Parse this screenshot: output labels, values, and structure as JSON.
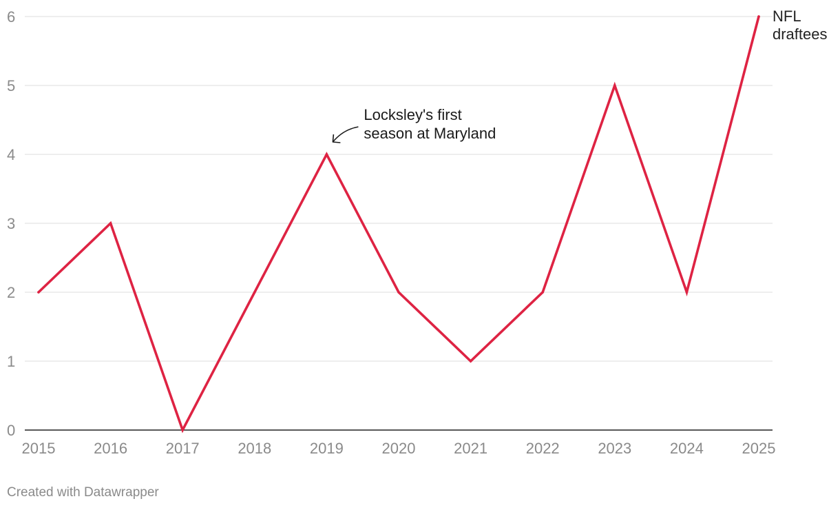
{
  "chart_data": {
    "type": "line",
    "categories": [
      "2015",
      "2016",
      "2017",
      "2018",
      "2019",
      "2020",
      "2021",
      "2022",
      "2023",
      "2024",
      "2025"
    ],
    "series": [
      {
        "name": "NFL draftees",
        "name_lines": [
          "NFL",
          "draftees"
        ],
        "values": [
          2,
          3,
          0,
          2,
          4,
          2,
          1,
          2,
          5,
          2,
          6
        ],
        "color": "#de2343"
      }
    ],
    "ylim": [
      0,
      6
    ],
    "yticks": [
      "0",
      "1",
      "2",
      "3",
      "4",
      "5",
      "6"
    ],
    "grid": true,
    "legend": "direct label at line end (right)",
    "annotations": [
      {
        "category": "2019",
        "value": 4,
        "lines": [
          "Locksley's first",
          "season at Maryland"
        ]
      }
    ],
    "title": "",
    "xlabel": "",
    "ylabel": ""
  },
  "colors": {
    "line": "#de2343",
    "grid": "#e3e3e3",
    "axis": "#222222",
    "tick_text": "#8a8a8a",
    "annotation_text": "#1a1a1a"
  },
  "footer": {
    "credit": "Created with Datawrapper"
  }
}
